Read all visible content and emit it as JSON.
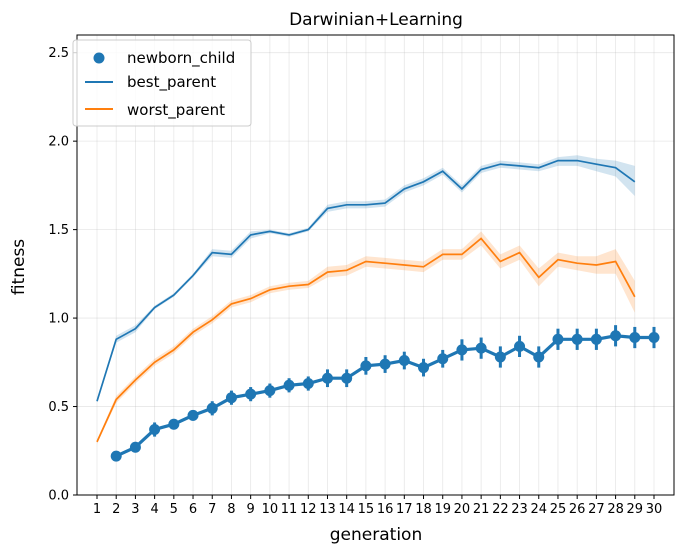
{
  "chart_data": {
    "type": "line",
    "title": "Darwinian+Learning",
    "xlabel": "generation",
    "ylabel": "fitness",
    "ylim": [
      0.0,
      2.6
    ],
    "yticks": [
      0.0,
      0.5,
      1.0,
      1.5,
      2.0,
      2.5
    ],
    "ytick_labels": [
      "0.0",
      "0.5",
      "1.0",
      "1.5",
      "2.0",
      "2.5"
    ],
    "categories": [
      1,
      2,
      3,
      4,
      5,
      6,
      7,
      8,
      9,
      10,
      11,
      12,
      13,
      14,
      15,
      16,
      17,
      18,
      19,
      20,
      21,
      22,
      23,
      24,
      25,
      26,
      27,
      28,
      29,
      30
    ],
    "xtick_labels": [
      "1",
      "2",
      "3",
      "4",
      "5",
      "6",
      "7",
      "8",
      "9",
      "10",
      "11",
      "12",
      "13",
      "14",
      "15",
      "16",
      "17",
      "18",
      "19",
      "20",
      "21",
      "22",
      "23",
      "24",
      "25",
      "26",
      "27",
      "28",
      "29",
      "30"
    ],
    "grid": true,
    "legend_position": "top-left",
    "series": [
      {
        "name": "best_parent",
        "style": "line-with-band",
        "color": "#1f77b4",
        "x": [
          1,
          2,
          3,
          4,
          5,
          6,
          7,
          8,
          9,
          10,
          11,
          12,
          13,
          14,
          15,
          16,
          17,
          18,
          19,
          20,
          21,
          22,
          23,
          24,
          25,
          26,
          27,
          28,
          29
        ],
        "values": [
          0.53,
          0.88,
          0.94,
          1.06,
          1.13,
          1.24,
          1.37,
          1.36,
          1.47,
          1.49,
          1.47,
          1.5,
          1.62,
          1.64,
          1.64,
          1.65,
          1.73,
          1.77,
          1.83,
          1.73,
          1.84,
          1.87,
          1.86,
          1.85,
          1.89,
          1.89,
          1.87,
          1.85,
          1.77
        ],
        "lower": [
          0.53,
          0.86,
          0.92,
          1.05,
          1.12,
          1.23,
          1.35,
          1.34,
          1.45,
          1.48,
          1.46,
          1.49,
          1.6,
          1.62,
          1.62,
          1.63,
          1.71,
          1.75,
          1.81,
          1.71,
          1.82,
          1.85,
          1.84,
          1.83,
          1.86,
          1.86,
          1.83,
          1.8,
          1.69
        ],
        "upper": [
          0.54,
          0.9,
          0.96,
          1.07,
          1.14,
          1.25,
          1.39,
          1.38,
          1.49,
          1.5,
          1.48,
          1.51,
          1.64,
          1.66,
          1.66,
          1.67,
          1.75,
          1.79,
          1.85,
          1.75,
          1.86,
          1.89,
          1.88,
          1.87,
          1.91,
          1.92,
          1.9,
          1.89,
          1.86
        ]
      },
      {
        "name": "worst_parent",
        "style": "line-with-band",
        "color": "#ff7f0e",
        "x": [
          1,
          2,
          3,
          4,
          5,
          6,
          7,
          8,
          9,
          10,
          11,
          12,
          13,
          14,
          15,
          16,
          17,
          18,
          19,
          20,
          21,
          22,
          23,
          24,
          25,
          26,
          27,
          28,
          29
        ],
        "values": [
          0.3,
          0.54,
          0.65,
          0.75,
          0.82,
          0.92,
          0.99,
          1.08,
          1.11,
          1.16,
          1.18,
          1.19,
          1.26,
          1.27,
          1.32,
          1.31,
          1.3,
          1.29,
          1.36,
          1.36,
          1.45,
          1.32,
          1.37,
          1.23,
          1.33,
          1.31,
          1.3,
          1.32,
          1.12
        ],
        "lower": [
          0.29,
          0.52,
          0.63,
          0.73,
          0.8,
          0.9,
          0.97,
          1.06,
          1.09,
          1.14,
          1.16,
          1.17,
          1.23,
          1.24,
          1.29,
          1.28,
          1.27,
          1.26,
          1.33,
          1.33,
          1.41,
          1.28,
          1.33,
          1.18,
          1.29,
          1.27,
          1.25,
          1.25,
          1.03
        ],
        "upper": [
          0.31,
          0.56,
          0.67,
          0.77,
          0.84,
          0.94,
          1.01,
          1.1,
          1.13,
          1.18,
          1.2,
          1.21,
          1.29,
          1.3,
          1.35,
          1.34,
          1.33,
          1.32,
          1.39,
          1.39,
          1.49,
          1.36,
          1.41,
          1.28,
          1.37,
          1.35,
          1.35,
          1.39,
          1.21
        ]
      },
      {
        "name": "newborn_child",
        "style": "point-with-errorbar",
        "color": "#1f77b4",
        "x": [
          2,
          3,
          4,
          5,
          6,
          7,
          8,
          9,
          10,
          11,
          12,
          13,
          14,
          15,
          16,
          17,
          18,
          19,
          20,
          21,
          22,
          23,
          24,
          25,
          26,
          27,
          28,
          29,
          30
        ],
        "values": [
          0.22,
          0.27,
          0.37,
          0.4,
          0.45,
          0.49,
          0.55,
          0.57,
          0.59,
          0.62,
          0.63,
          0.66,
          0.66,
          0.73,
          0.74,
          0.76,
          0.72,
          0.77,
          0.82,
          0.83,
          0.78,
          0.84,
          0.78,
          0.88,
          0.88,
          0.88,
          0.9,
          0.89,
          0.89
        ],
        "lower": [
          0.2,
          0.24,
          0.33,
          0.37,
          0.42,
          0.45,
          0.51,
          0.53,
          0.55,
          0.58,
          0.59,
          0.61,
          0.61,
          0.68,
          0.69,
          0.71,
          0.67,
          0.72,
          0.76,
          0.77,
          0.72,
          0.78,
          0.72,
          0.82,
          0.82,
          0.82,
          0.84,
          0.83,
          0.83
        ],
        "upper": [
          0.24,
          0.3,
          0.41,
          0.43,
          0.48,
          0.53,
          0.59,
          0.61,
          0.63,
          0.66,
          0.67,
          0.71,
          0.71,
          0.78,
          0.79,
          0.81,
          0.77,
          0.82,
          0.88,
          0.89,
          0.84,
          0.9,
          0.84,
          0.94,
          0.94,
          0.94,
          0.96,
          0.95,
          0.95
        ]
      }
    ],
    "legend": [
      {
        "label": "newborn_child",
        "marker": "circle",
        "color": "#1f77b4"
      },
      {
        "label": "best_parent",
        "marker": "line",
        "color": "#1f77b4"
      },
      {
        "label": "worst_parent",
        "marker": "line",
        "color": "#ff7f0e"
      }
    ]
  }
}
